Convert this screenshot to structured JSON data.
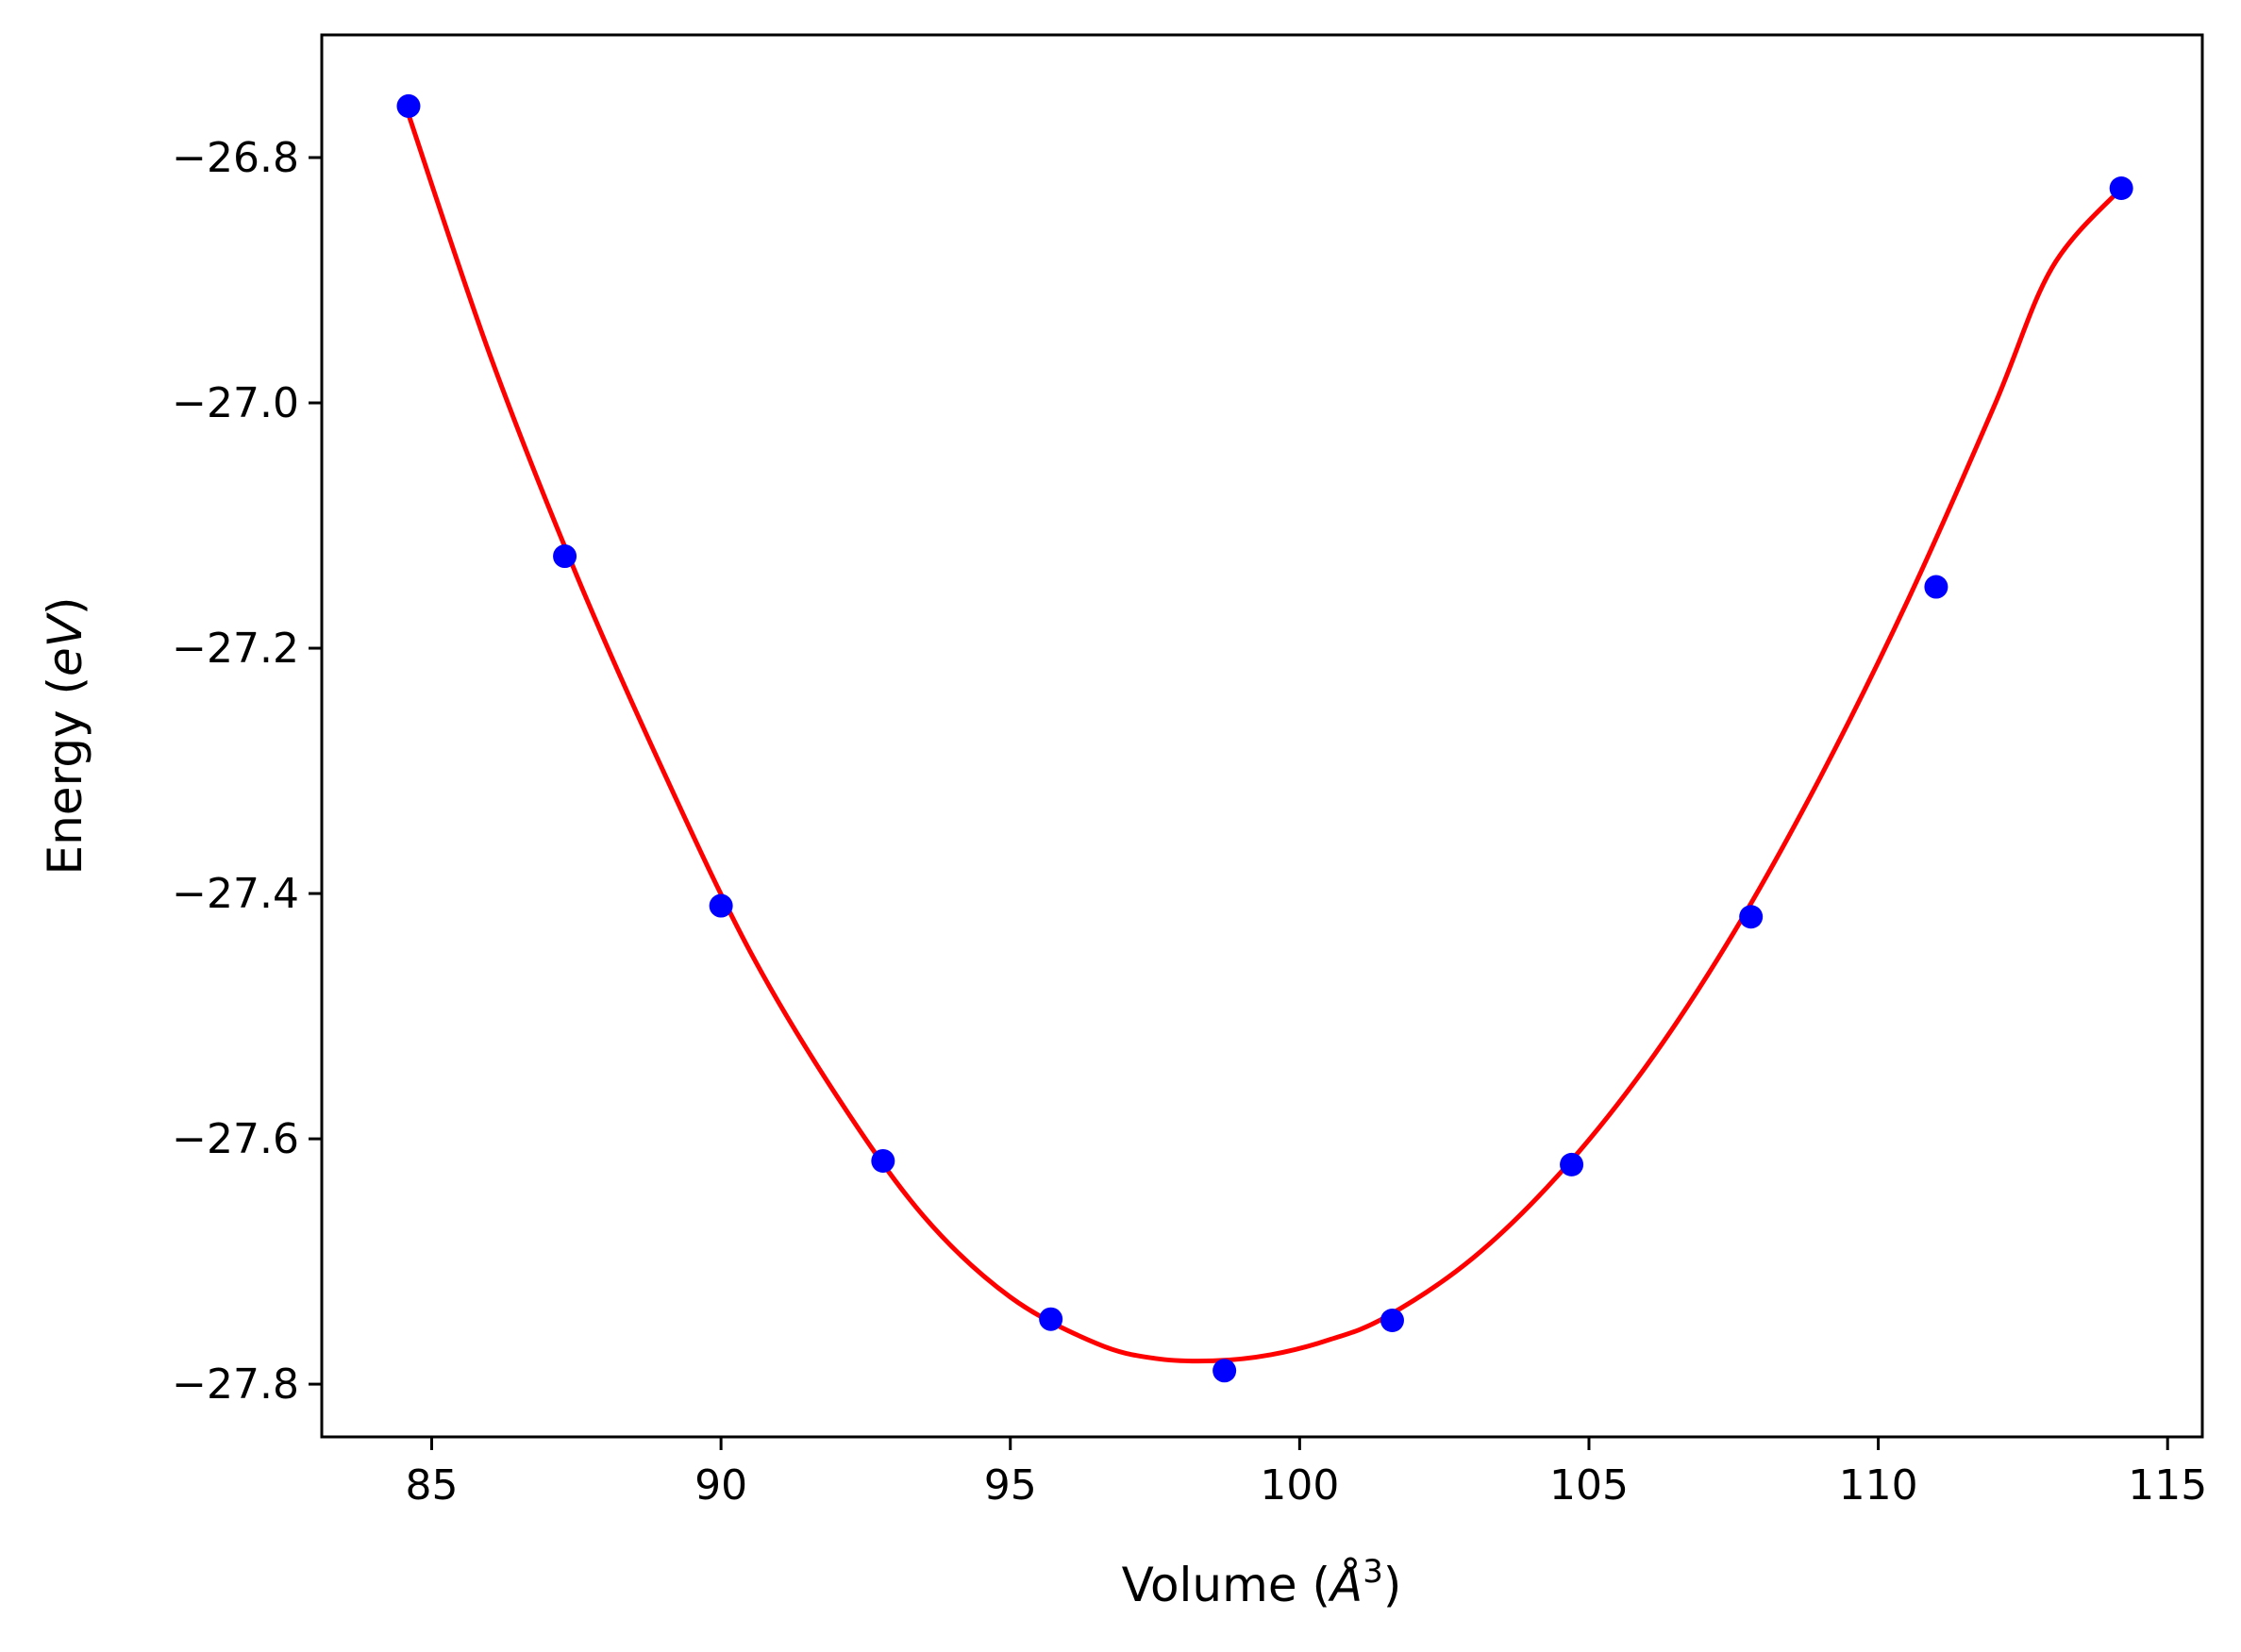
{
  "chart_data": {
    "type": "line",
    "title": "",
    "xlabel": {
      "prefix": "Volume (",
      "symbol": "Å",
      "sup": "3",
      "suffix": ")"
    },
    "ylabel": {
      "prefix": "Energy (",
      "italic": "eV",
      "suffix": ")"
    },
    "xlim": [
      83.1,
      115.6
    ],
    "ylim": [
      -27.843,
      -26.7
    ],
    "xticks": [
      85,
      90,
      95,
      100,
      105,
      110,
      115
    ],
    "yticks": [
      -26.8,
      -27.0,
      -27.2,
      -27.4,
      -27.6,
      -27.8
    ],
    "xtick_labels": [
      "85",
      "90",
      "95",
      "100",
      "105",
      "110",
      "115"
    ],
    "ytick_labels": [
      "−26.8",
      "−27.0",
      "−27.2",
      "−27.4",
      "−27.6",
      "−27.8"
    ],
    "grid": false,
    "legend": "none",
    "series": [
      {
        "kind": "scatter",
        "color": "#0000ff",
        "x": [
          84.6,
          87.3,
          90.0,
          92.8,
          95.7,
          98.7,
          101.6,
          104.7,
          107.8,
          111.0,
          114.2
        ],
        "y": [
          -26.758,
          -27.125,
          -27.41,
          -27.618,
          -27.747,
          -27.789,
          -27.748,
          -27.621,
          -27.419,
          -27.15,
          -26.825
        ]
      },
      {
        "kind": "fit-line",
        "color": "#ff0000",
        "x": [
          84.6,
          86.0,
          87.5,
          89.0,
          90.5,
          92.0,
          93.5,
          95.0,
          96.5,
          97.5,
          98.5,
          99.5,
          100.5,
          101.5,
          103.0,
          104.5,
          106.0,
          107.5,
          109.0,
          110.5,
          112.0,
          113.0,
          114.2
        ],
        "y": [
          -26.765,
          -26.96,
          -27.14,
          -27.3,
          -27.447,
          -27.565,
          -27.663,
          -27.729,
          -27.767,
          -27.779,
          -27.781,
          -27.776,
          -27.764,
          -27.745,
          -27.697,
          -27.628,
          -27.54,
          -27.432,
          -27.305,
          -27.162,
          -27.003,
          -26.89,
          -26.825
        ]
      }
    ]
  }
}
